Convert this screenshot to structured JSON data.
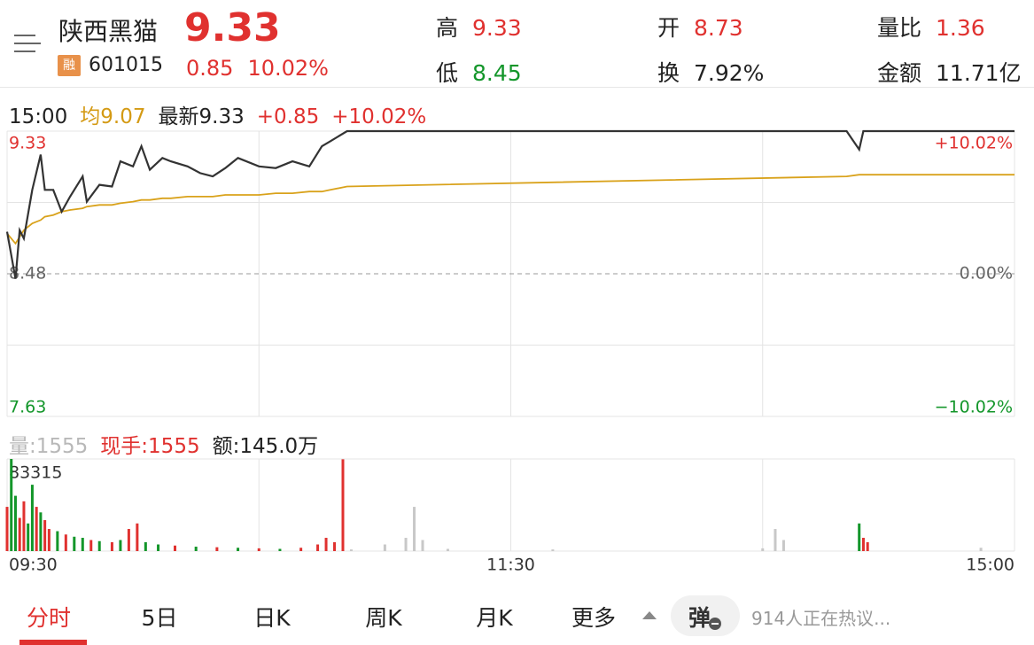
{
  "header": {
    "name": "陕西黑猫",
    "badge": "融",
    "code": "601015",
    "price": "9.33",
    "change": "0.85",
    "change_pct": "10.02%",
    "high_label": "高",
    "high": "9.33",
    "low_label": "低",
    "low": "8.45",
    "open_label": "开",
    "open": "8.73",
    "turnover_label": "换",
    "turnover": "7.92%",
    "ratio_label": "量比",
    "ratio": "1.36",
    "amount_label": "金额",
    "amount": "11.71亿"
  },
  "info_bar": {
    "time": "15:00",
    "avg": "均9.07",
    "latest": "最新9.33",
    "change": "+0.85",
    "change_pct": "+10.02%"
  },
  "volume_info": {
    "volume": "量:1555",
    "current": "现手:1555",
    "amount": "额:145.0万"
  },
  "tabs": [
    "分时",
    "5日",
    "日K",
    "周K",
    "月K",
    "更多"
  ],
  "danmaku": {
    "label": "弹",
    "discussion": "914人正在热议..."
  },
  "chart_data": [
    {
      "type": "line",
      "x": [
        0,
        2,
        3,
        4,
        6,
        8,
        9,
        11,
        13,
        15,
        18,
        19,
        22,
        25,
        27,
        30,
        32,
        34,
        37,
        39,
        43,
        46,
        49,
        52,
        55,
        60,
        64,
        68,
        72,
        75,
        77,
        81,
        200,
        203,
        204,
        240
      ],
      "series": [
        {
          "name": "最新",
          "color": "#333333",
          "values": [
            8.73,
            8.45,
            8.74,
            8.69,
            8.98,
            9.19,
            8.98,
            8.98,
            8.85,
            8.94,
            9.06,
            8.91,
            9.01,
            9.0,
            9.15,
            9.12,
            9.24,
            9.1,
            9.17,
            9.15,
            9.12,
            9.08,
            9.06,
            9.11,
            9.17,
            9.12,
            9.11,
            9.15,
            9.12,
            9.24,
            9.27,
            9.33,
            9.33,
            9.22,
            9.33,
            9.33
          ]
        },
        {
          "name": "均",
          "color": "#d9a21b",
          "values": [
            8.72,
            8.66,
            8.7,
            8.74,
            8.78,
            8.8,
            8.82,
            8.83,
            8.85,
            8.86,
            8.87,
            8.88,
            8.89,
            8.89,
            8.9,
            8.91,
            8.92,
            8.92,
            8.93,
            8.93,
            8.94,
            8.94,
            8.94,
            8.95,
            8.95,
            8.95,
            8.96,
            8.96,
            8.97,
            8.97,
            8.98,
            9.0,
            9.06,
            9.07,
            9.07,
            9.07
          ]
        }
      ],
      "xlim": [
        0,
        240
      ],
      "xticks": [
        {
          "value": 0,
          "label": "09:30"
        },
        {
          "value": 120,
          "label": "11:30"
        },
        {
          "value": 240,
          "label": "15:00"
        }
      ],
      "ylim": [
        7.63,
        9.33
      ],
      "yticks": [
        9.33,
        8.48,
        7.63
      ],
      "y2lim": [
        -10.02,
        10.02
      ],
      "y2ticks": [
        {
          "value": 10.02,
          "label": "+10.02%"
        },
        {
          "value": 0,
          "label": "0.00%"
        },
        {
          "value": -10.02,
          "label": "−10.02%"
        }
      ]
    },
    {
      "type": "bar",
      "x": [
        0,
        1,
        2,
        3,
        4,
        5,
        6,
        7,
        8,
        9,
        10,
        12,
        14,
        16,
        18,
        20,
        22,
        25,
        27,
        29,
        31,
        33,
        36,
        40,
        45,
        50,
        55,
        60,
        65,
        70,
        74,
        76,
        78,
        80,
        82,
        90,
        95,
        97,
        99,
        105,
        130,
        180,
        183,
        185,
        203,
        204,
        205,
        232
      ],
      "values": [
        40000,
        83315,
        50000,
        30000,
        45000,
        25000,
        60000,
        40000,
        35000,
        28000,
        20000,
        18000,
        15000,
        13000,
        12000,
        10000,
        9000,
        8000,
        10000,
        20000,
        25000,
        8000,
        6000,
        5000,
        4000,
        3500,
        3000,
        2500,
        2000,
        3000,
        6000,
        12000,
        8000,
        83000,
        1500,
        6000,
        12000,
        40000,
        10000,
        2000,
        1500,
        2500,
        20000,
        10000,
        25000,
        12000,
        8000,
        3000
      ],
      "colors": [
        "#e0312f",
        "#13962a",
        "#13962a",
        "#e0312f",
        "#e0312f",
        "#13962a",
        "#13962a",
        "#e0312f",
        "#13962a",
        "#e0312f",
        "#e0312f",
        "#13962a",
        "#e0312f",
        "#13962a",
        "#13962a",
        "#e0312f",
        "#13962a",
        "#e0312f",
        "#13962a",
        "#e0312f",
        "#e0312f",
        "#13962a",
        "#13962a",
        "#e0312f",
        "#13962a",
        "#e0312f",
        "#13962a",
        "#e0312f",
        "#13962a",
        "#e0312f",
        "#e0312f",
        "#e0312f",
        "#e0312f",
        "#e0312f",
        "#c8c8c8",
        "#c8c8c8",
        "#c8c8c8",
        "#c8c8c8",
        "#c8c8c8",
        "#c8c8c8",
        "#c8c8c8",
        "#c8c8c8",
        "#c8c8c8",
        "#c8c8c8",
        "#13962a",
        "#e0312f",
        "#e0312f",
        "#c8c8c8"
      ],
      "ylim": [
        0,
        83315
      ],
      "yticks": [
        83315
      ]
    }
  ]
}
